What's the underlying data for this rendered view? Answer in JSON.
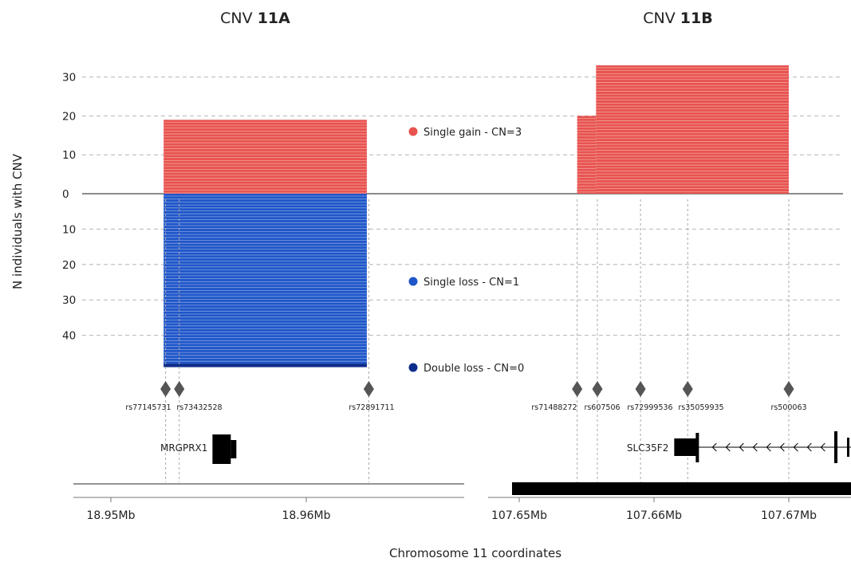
{
  "chart_data": {
    "type": "bar",
    "xlabel": "Chromosome 11 coordinates",
    "ylabel": "N individuals with CNV",
    "colors": {
      "gain": "#e8534f",
      "loss": "#1f56c9",
      "double_loss": "#0d2d8a"
    },
    "y_ticks_up": [
      {
        "value": 30,
        "label": "30"
      },
      {
        "value": 20,
        "label": "20"
      },
      {
        "value": 10,
        "label": "10"
      },
      {
        "value": 0,
        "label": "0"
      }
    ],
    "y_ticks_down": [
      {
        "value": 10,
        "label": "10"
      },
      {
        "value": 20,
        "label": "20"
      },
      {
        "value": 30,
        "label": "30"
      },
      {
        "value": 40,
        "label": "40"
      }
    ],
    "legend": [
      {
        "label": "Single gain - CN=3",
        "color": "#e8534f"
      },
      {
        "label": "Single loss - CN=1",
        "color": "#1f56c9"
      },
      {
        "label": "Double loss - CN=0",
        "color": "#0d2d8a"
      }
    ],
    "panels": [
      {
        "title": "CNV 11A",
        "title_prefix": "CNV ",
        "title_bold": "11A",
        "x_ticks": [
          {
            "value": 18.95,
            "label": "18.95Mb"
          },
          {
            "value": 18.96,
            "label": "18.96Mb"
          }
        ],
        "segments": [
          {
            "type": "gain",
            "start": 18.9527,
            "end": 18.9631,
            "count": 19
          },
          {
            "type": "loss",
            "start": 18.9527,
            "end": 18.9631,
            "count": 48
          },
          {
            "type": "double_loss",
            "start": 18.9527,
            "end": 18.9631,
            "count": 1
          }
        ],
        "snps": [
          {
            "id": "rs77145731",
            "pos": 18.9528
          },
          {
            "id": "rs73432528",
            "pos": 18.9535
          },
          {
            "id": "rs72891711",
            "pos": 18.9632
          }
        ],
        "genes": [
          {
            "name": "MRGPRX1",
            "start": 18.9552,
            "end": 18.9563,
            "strand": "+"
          }
        ]
      },
      {
        "title": "CNV 11B",
        "title_prefix": "CNV ",
        "title_bold": "11B",
        "x_ticks": [
          {
            "value": 107.65,
            "label": "107.65Mb"
          },
          {
            "value": 107.66,
            "label": "107.66Mb"
          },
          {
            "value": 107.67,
            "label": "107.67Mb"
          }
        ],
        "segments": [
          {
            "type": "gain",
            "start": 107.6543,
            "end": 107.659,
            "count": 2
          },
          {
            "type": "gain",
            "start": 107.6543,
            "end": 107.6557,
            "count": 20
          },
          {
            "type": "gain",
            "start": 107.6557,
            "end": 107.67,
            "count": 33
          }
        ],
        "snps": [
          {
            "id": "rs71488272",
            "pos": 107.6543
          },
          {
            "id": "rs607506",
            "pos": 107.6558
          },
          {
            "id": "rs72999536",
            "pos": 107.659
          },
          {
            "id": "rs35059935",
            "pos": 107.6625
          },
          {
            "id": "rs500063",
            "pos": 107.67
          }
        ],
        "genes": [
          {
            "name": "SLC35F2",
            "start": 107.6615,
            "end": 107.675,
            "strand": "-"
          }
        ]
      }
    ]
  }
}
